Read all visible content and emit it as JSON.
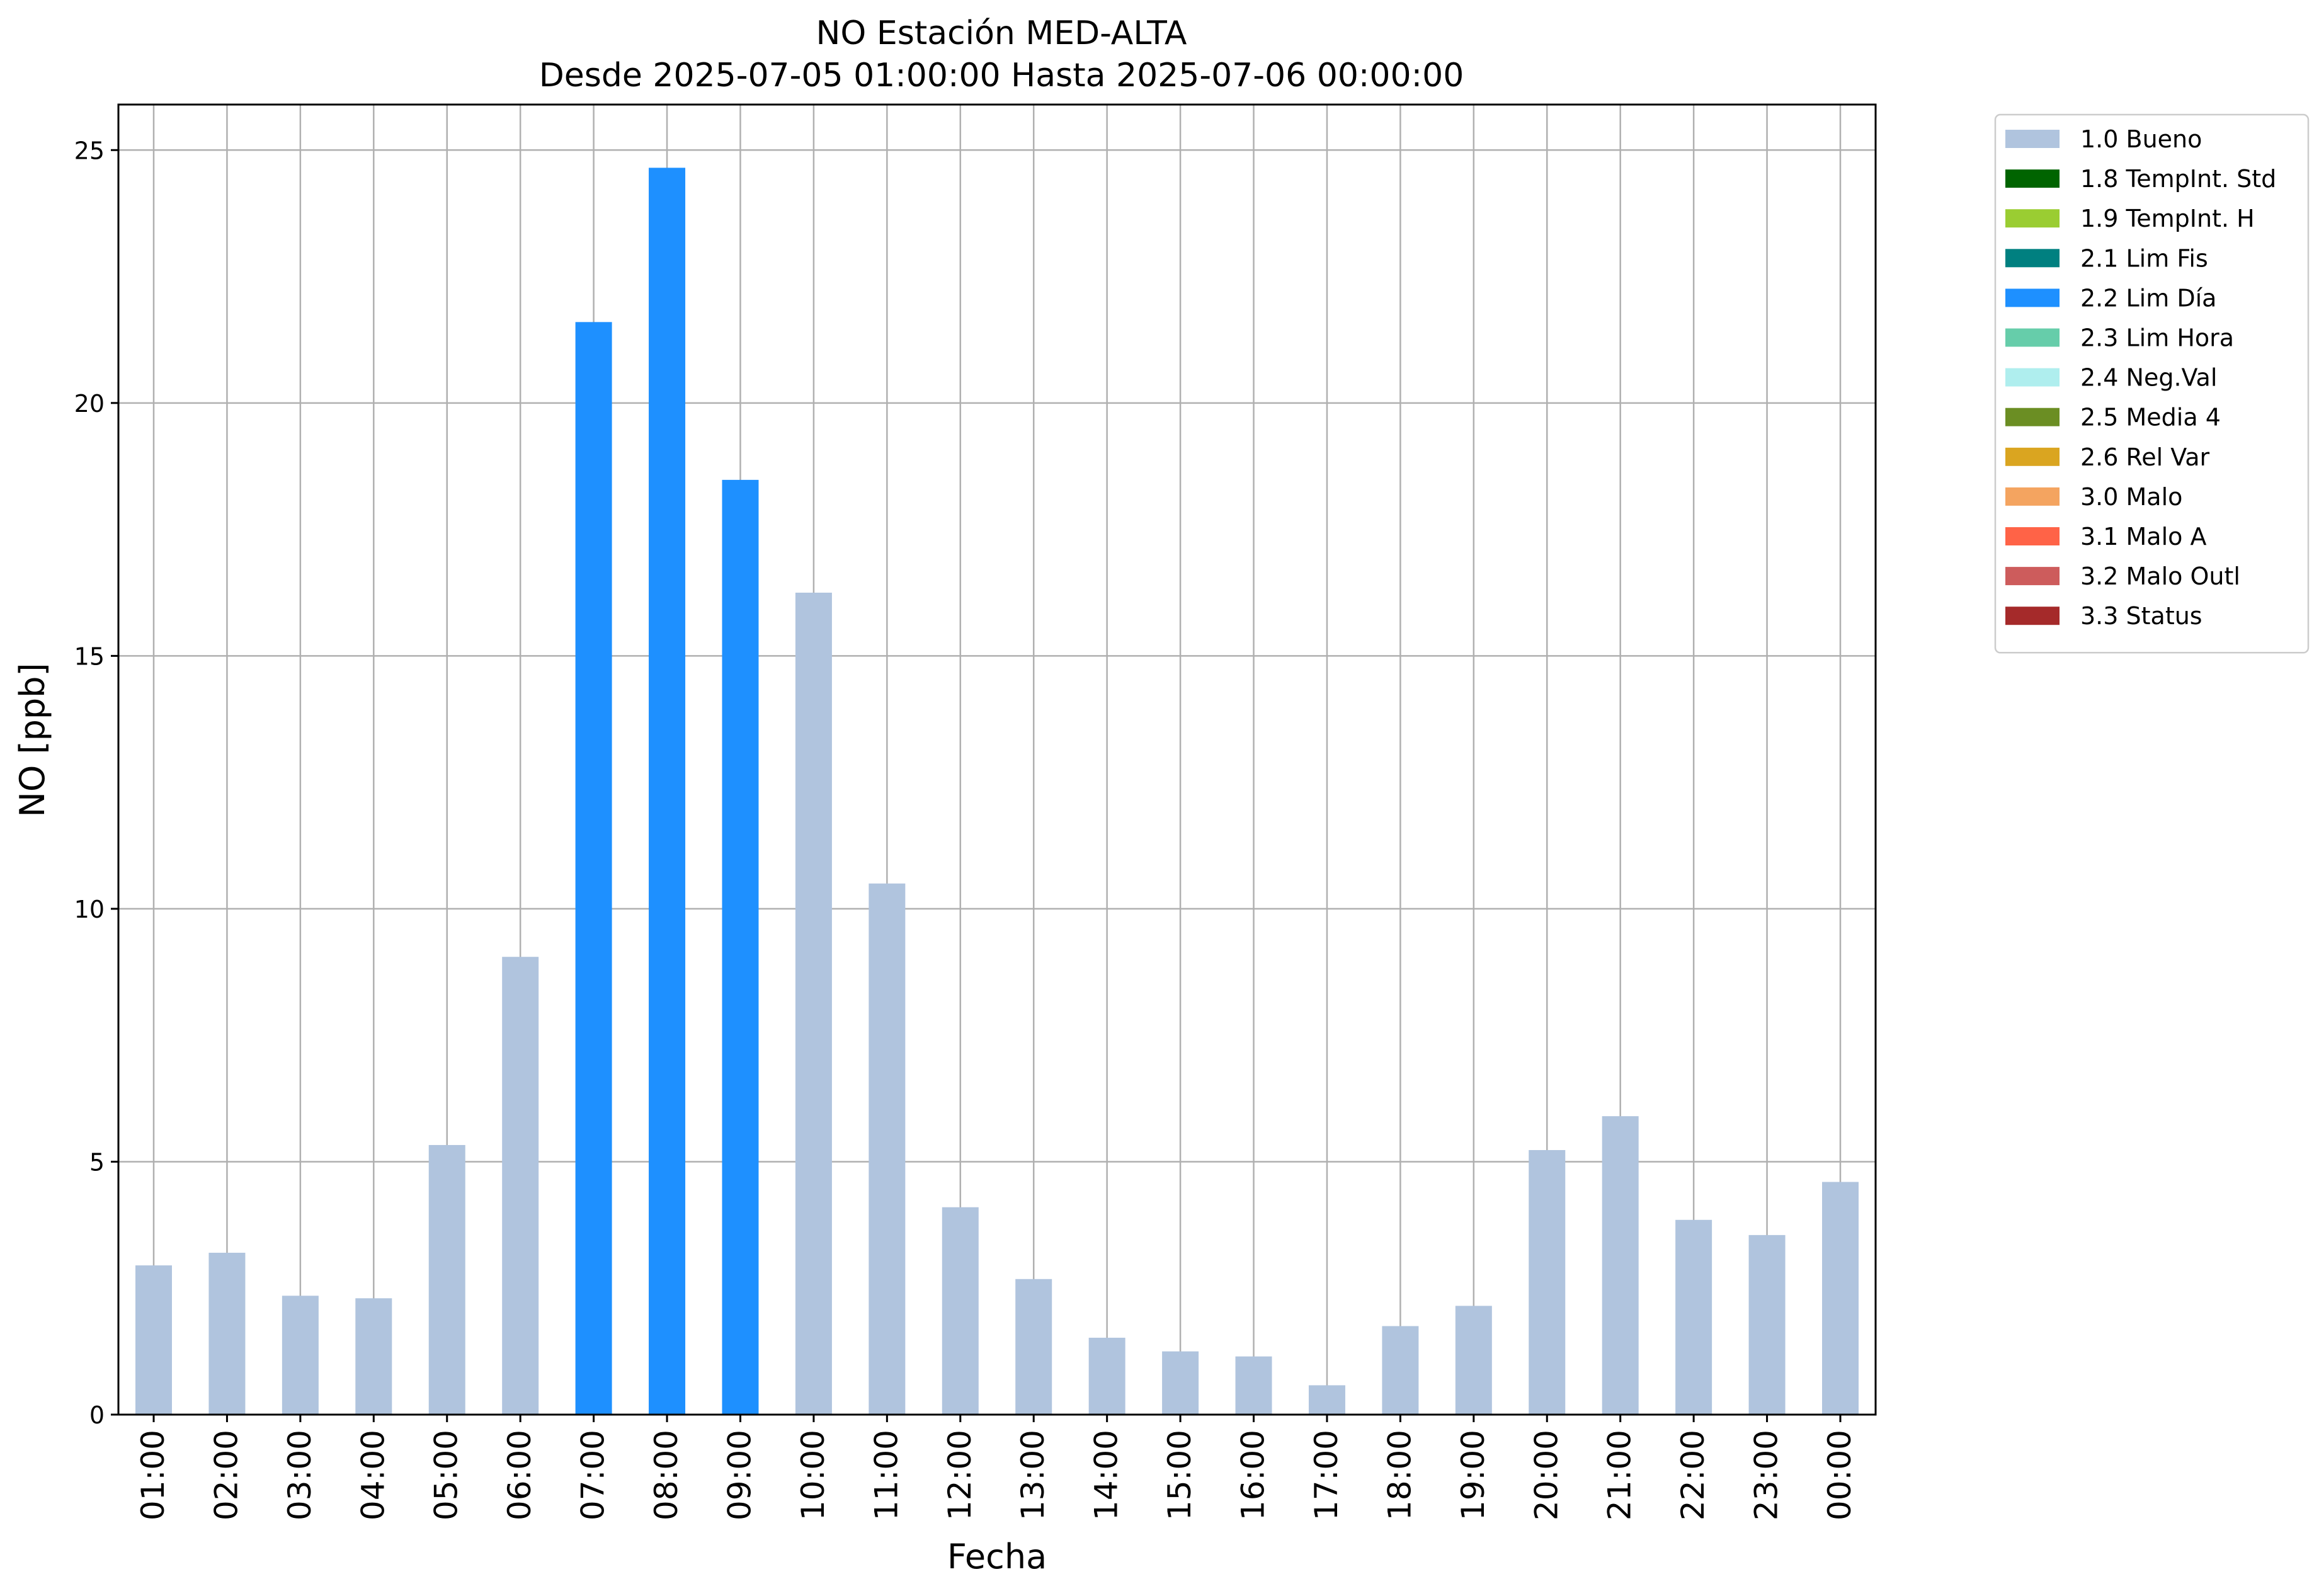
{
  "chart_data": {
    "type": "bar",
    "title": "NO Estación MED-ALTA",
    "subtitle": "Desde 2025-07-05 01:00:00 Hasta 2025-07-06 00:00:00",
    "xlabel": "Fecha",
    "ylabel": "NO [ppb]",
    "ylim": [
      0,
      25.9
    ],
    "yticks": [
      "0",
      "5",
      "10",
      "15",
      "20",
      "25"
    ],
    "ytick_values": [
      0,
      5,
      10,
      15,
      20,
      25
    ],
    "grid": true,
    "legend_position": "outside-top-right",
    "categories": [
      "01:00",
      "02:00",
      "03:00",
      "04:00",
      "05:00",
      "06:00",
      "07:00",
      "08:00",
      "09:00",
      "10:00",
      "11:00",
      "12:00",
      "13:00",
      "14:00",
      "15:00",
      "16:00",
      "17:00",
      "18:00",
      "19:00",
      "20:00",
      "21:00",
      "22:00",
      "23:00",
      "00:00"
    ],
    "values": [
      2.95,
      3.2,
      2.35,
      2.3,
      5.33,
      9.05,
      21.6,
      24.65,
      18.48,
      16.25,
      10.5,
      4.1,
      2.68,
      1.52,
      1.25,
      1.15,
      0.58,
      1.75,
      2.15,
      5.23,
      5.9,
      3.85,
      3.55,
      4.6
    ],
    "quality_flags": [
      "1.0 Bueno",
      "1.0 Bueno",
      "1.0 Bueno",
      "1.0 Bueno",
      "1.0 Bueno",
      "1.0 Bueno",
      "2.2 Lim Día",
      "2.2 Lim Día",
      "2.2 Lim Día",
      "1.0 Bueno",
      "1.0 Bueno",
      "1.0 Bueno",
      "1.0 Bueno",
      "1.0 Bueno",
      "1.0 Bueno",
      "1.0 Bueno",
      "1.0 Bueno",
      "1.0 Bueno",
      "1.0 Bueno",
      "1.0 Bueno",
      "1.0 Bueno",
      "1.0 Bueno",
      "1.0 Bueno",
      "1.0 Bueno"
    ],
    "legend": [
      {
        "name": "1.0 Bueno",
        "color": "#b0c4de"
      },
      {
        "name": "1.8 TempInt. Std",
        "color": "#006400"
      },
      {
        "name": "1.9 TempInt. H",
        "color": "#9acd32"
      },
      {
        "name": "2.1 Lim Fis",
        "color": "#008080"
      },
      {
        "name": "2.2 Lim Día",
        "color": "#1e90ff"
      },
      {
        "name": "2.3 Lim Hora",
        "color": "#66cdaa"
      },
      {
        "name": "2.4 Neg.Val",
        "color": "#afeeee"
      },
      {
        "name": "2.5 Media 4",
        "color": "#6b8e23"
      },
      {
        "name": "2.6 Rel Var",
        "color": "#daa520"
      },
      {
        "name": "3.0 Malo",
        "color": "#f4a460"
      },
      {
        "name": "3.1 Malo A",
        "color": "#ff6347"
      },
      {
        "name": "3.2 Malo Outl",
        "color": "#cd5c5c"
      },
      {
        "name": "3.3 Status",
        "color": "#a52a2a"
      }
    ]
  }
}
